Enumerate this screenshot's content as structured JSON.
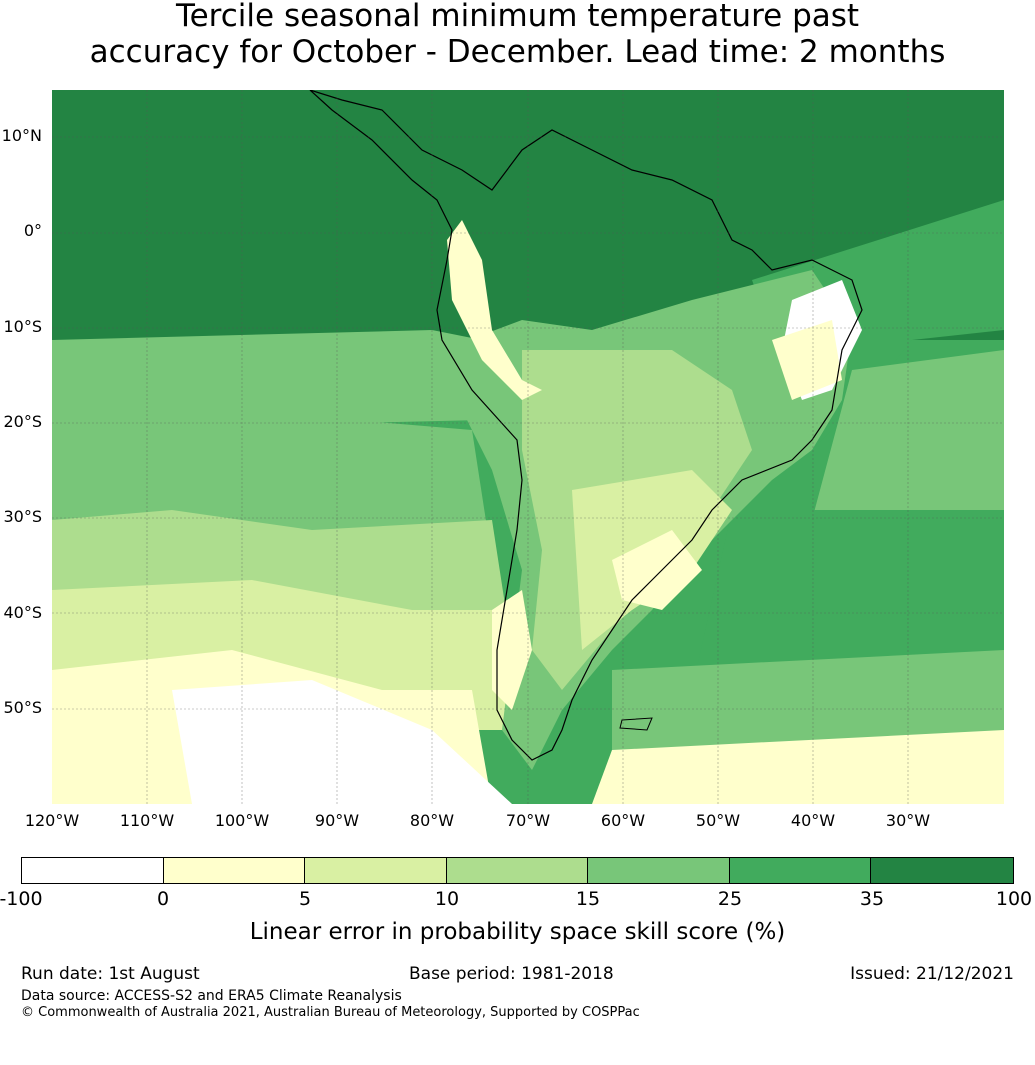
{
  "title": {
    "line1": "Tercile seasonal minimum temperature past",
    "line2": "accuracy for October - December. Lead time: 2 months"
  },
  "map": {
    "lat_labels": [
      "10°N",
      "0°",
      "10°S",
      "20°S",
      "30°S",
      "40°S",
      "50°S"
    ],
    "lon_labels": [
      "120°W",
      "110°W",
      "100°W",
      "90°W",
      "80°W",
      "70°W",
      "60°W",
      "50°W",
      "40°W",
      "30°W"
    ],
    "extent": {
      "lon_min": -125,
      "lon_max": -25,
      "lat_min": -60,
      "lat_max": 15
    }
  },
  "colorbar": {
    "tick_labels": [
      "-100",
      "0",
      "5",
      "10",
      "15",
      "25",
      "35",
      "100"
    ],
    "colors": [
      "#ffffff",
      "#ffffcc",
      "#d9f0a3",
      "#addd8e",
      "#78c679",
      "#41ab5d",
      "#238443"
    ],
    "label": "Linear error in probability space skill score (%)"
  },
  "footer": {
    "run_date": "Run date: 1st August",
    "base_period": "Base period: 1981-2018",
    "issued": "Issued: 21/12/2021",
    "data_source": "Data source: ACCESS-S2 and ERA5 Climate Reanalysis",
    "copyright": "© Commonwealth of Australia 2021, Australian Bureau of Meteorology, Supported by COSPPac"
  }
}
